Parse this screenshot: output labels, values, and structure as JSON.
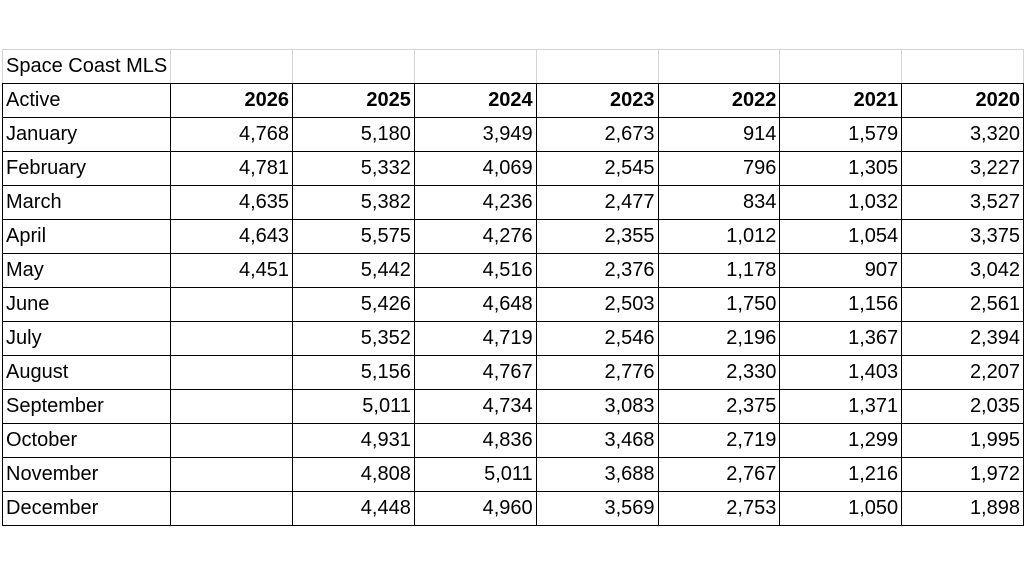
{
  "table": {
    "title": "Space Coast MLS",
    "header": [
      "Active",
      "2026",
      "2025",
      "2024",
      "2023",
      "2022",
      "2021",
      "2020"
    ],
    "rows": [
      [
        "January",
        "4,768",
        "5,180",
        "3,949",
        "2,673",
        "914",
        "1,579",
        "3,320"
      ],
      [
        "February",
        "4,781",
        "5,332",
        "4,069",
        "2,545",
        "796",
        "1,305",
        "3,227"
      ],
      [
        "March",
        "4,635",
        "5,382",
        "4,236",
        "2,477",
        "834",
        "1,032",
        "3,527"
      ],
      [
        "April",
        "4,643",
        "5,575",
        "4,276",
        "2,355",
        "1,012",
        "1,054",
        "3,375"
      ],
      [
        "May",
        "4,451",
        "5,442",
        "4,516",
        "2,376",
        "1,178",
        "907",
        "3,042"
      ],
      [
        "June",
        null,
        "5,426",
        "4,648",
        "2,503",
        "1,750",
        "1,156",
        "2,561"
      ],
      [
        "July",
        null,
        "5,352",
        "4,719",
        "2,546",
        "2,196",
        "1,367",
        "2,394"
      ],
      [
        "August",
        null,
        "5,156",
        "4,767",
        "2,776",
        "2,330",
        "1,403",
        "2,207"
      ],
      [
        "September",
        null,
        "5,011",
        "4,734",
        "3,083",
        "2,375",
        "1,371",
        "2,035"
      ],
      [
        "October",
        null,
        "4,931",
        "4,836",
        "3,468",
        "2,719",
        "1,299",
        "1,995"
      ],
      [
        "November",
        null,
        "4,808",
        "5,011",
        "3,688",
        "2,767",
        "1,216",
        "1,972"
      ],
      [
        "December",
        null,
        "4,448",
        "4,960",
        "3,569",
        "2,753",
        "1,050",
        "1,898"
      ]
    ]
  }
}
